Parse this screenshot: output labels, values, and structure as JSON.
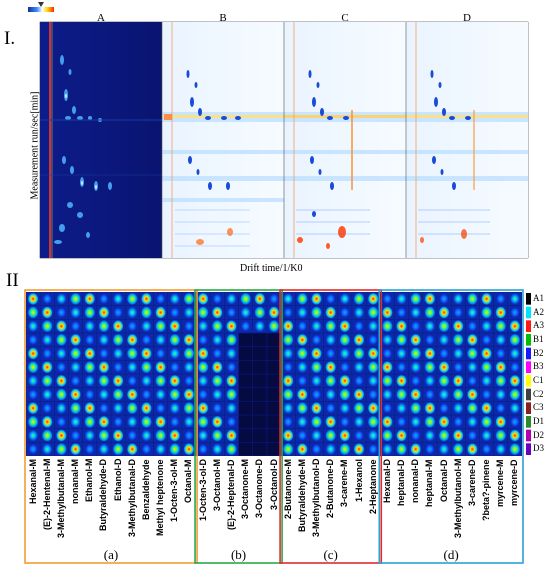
{
  "part1": {
    "label": "I.",
    "panels": [
      "A",
      "B",
      "C",
      "D"
    ],
    "y_axis_title": "Measurement run/sec[min]",
    "x_axis_title": "Drift time/1/K0",
    "colorbar": {
      "colors": [
        "#1a2a9a",
        "#3f8fff",
        "#ffffff",
        "#ffd400",
        "#ff2a00"
      ]
    }
  },
  "part2": {
    "label": "II",
    "groups": [
      {
        "letter": "(a)",
        "color": "#f39c34"
      },
      {
        "letter": "(b)",
        "color": "#2aa84a"
      },
      {
        "letter": "(c)",
        "color": "#e02b2b"
      },
      {
        "letter": "(d)",
        "color": "#2aa2d6"
      }
    ],
    "columns": [
      "Hexanal-M",
      "(E)-2-Hentenal-M",
      "3-Methylbutanal-M",
      "nonanal-M",
      "Ethanol-M",
      "Butyraldehyde-D",
      "Ethanol-D",
      "3-Methylbutanal-D",
      "Benzaldehyde",
      "Methyl heptenone",
      "1-Octen-3-ol-M",
      "Octanal-M",
      "1-Octen-3-ol-D",
      "3-Octanol-M",
      "(E)-2-Heptenal-D",
      "3-Octanone-M",
      "3-Octanone-D",
      "3-Octanol-D",
      "2-Butanone-M",
      "Butyraldehyde-M",
      "3-Methylbutanol-D",
      "2-Butanone-D",
      "3-carene-M",
      "1-Hexanol",
      "2-Heptanone",
      "Hexanal-D",
      "heptanal-D",
      "nonanal-D",
      "heptanal-M",
      "Octanal-D",
      "3-Methylbutanol-M",
      "3-carene-D",
      "?beta?-pinene",
      "myrcene-M",
      "myrcene-D"
    ],
    "rows": [
      "A1",
      "A2",
      "A3",
      "B1",
      "B2",
      "B3",
      "C1",
      "C2",
      "C3",
      "D1",
      "D2",
      "D3"
    ],
    "row_colors": [
      "#000000",
      "#00e5ff",
      "#ff1a1a",
      "#00c000",
      "#1a1aff",
      "#ff00ff",
      "#ffff00",
      "#404040",
      "#8b2020",
      "#2a8a2a",
      "#b000b0",
      "#6a00c0"
    ]
  }
}
